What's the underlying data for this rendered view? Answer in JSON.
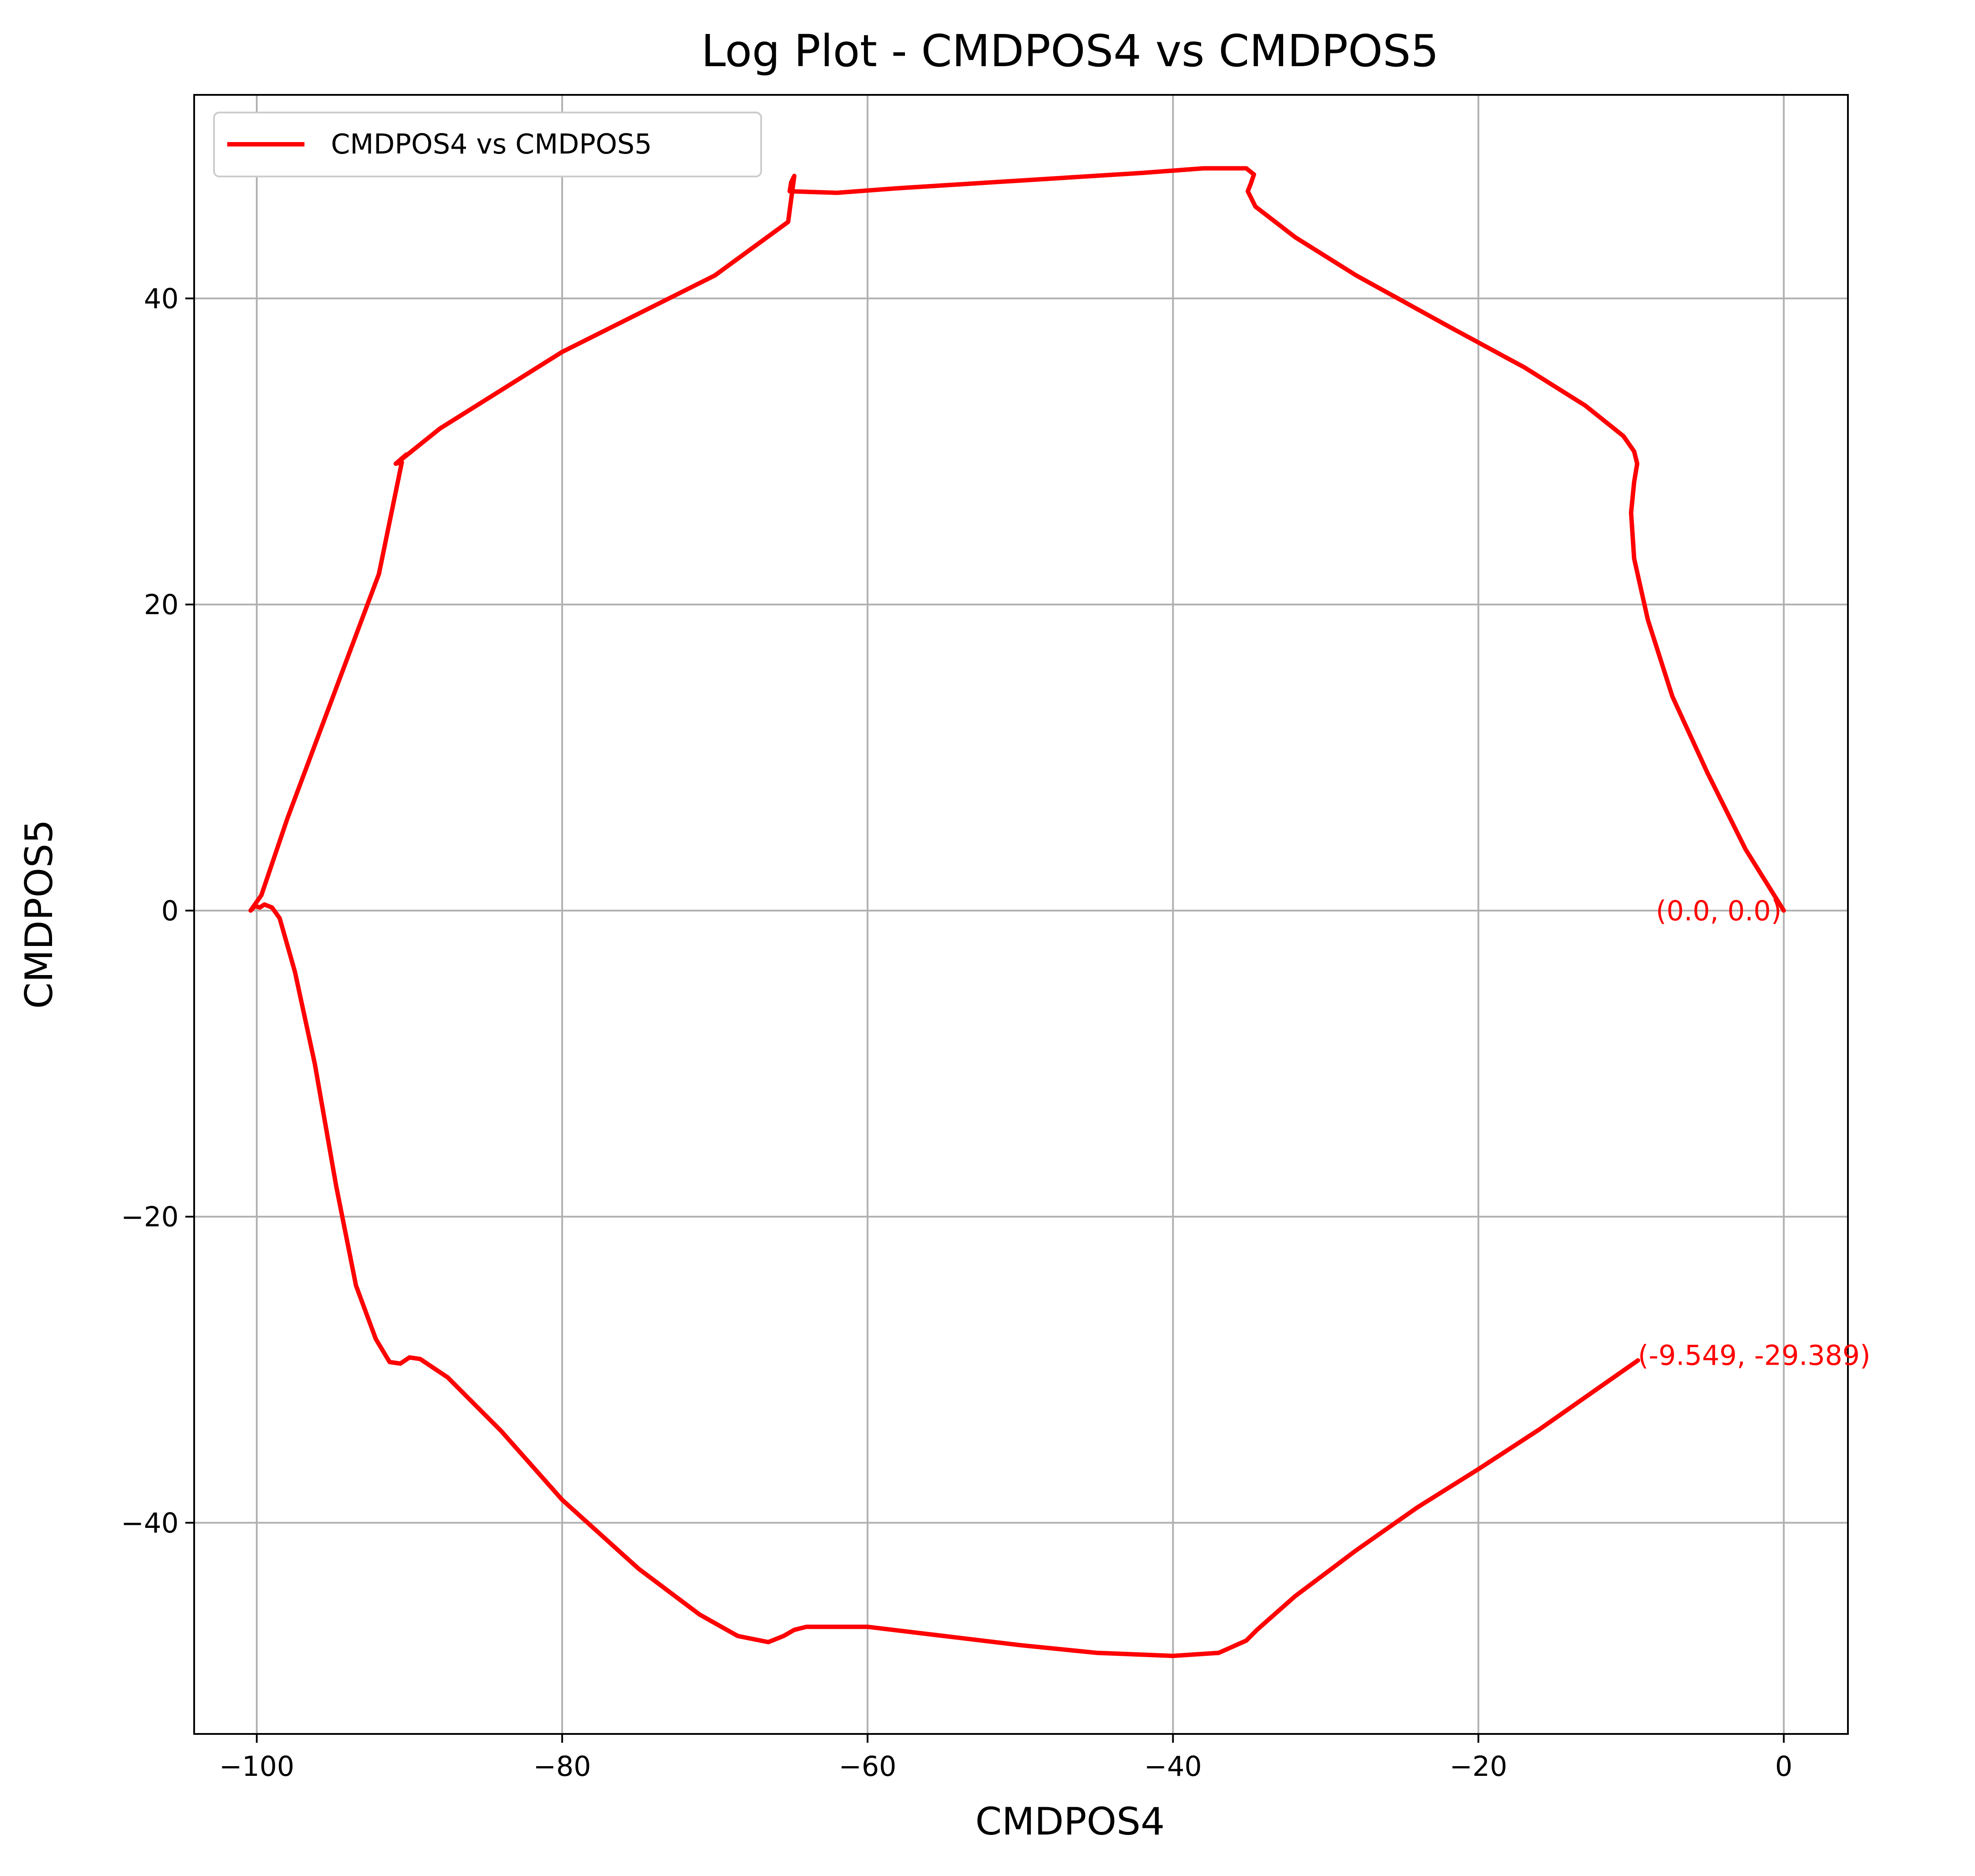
{
  "chart_data": {
    "type": "line",
    "title": "Log Plot - CMDPOS4 vs CMDPOS5",
    "xlabel": "CMDPOS4",
    "ylabel": "CMDPOS5",
    "xlim": [
      -104.1,
      4.2
    ],
    "ylim": [
      -53.8,
      53.3
    ],
    "xticks": [
      -100,
      -80,
      -60,
      -40,
      -20,
      0
    ],
    "yticks": [
      -40,
      -20,
      0,
      20,
      40
    ],
    "xtick_labels": [
      "−100",
      "−80",
      "−60",
      "−40",
      "−20",
      "0"
    ],
    "ytick_labels": [
      "−40",
      "−20",
      "0",
      "20",
      "40"
    ],
    "grid": true,
    "legend": {
      "position": "top-left",
      "entries": [
        "CMDPOS4 vs CMDPOS5"
      ]
    },
    "series": [
      {
        "name": "CMDPOS4 vs CMDPOS5",
        "color": "#ff0000",
        "x": [
          0,
          -2.5,
          -5,
          -7.3,
          -8.9,
          -9.8,
          -10.0,
          -9.8,
          -9.6,
          -9.8,
          -10.5,
          -13,
          -17,
          -22,
          -28,
          -32,
          -34.6,
          -35.1,
          -34.9,
          -34.7,
          -35.2,
          -38,
          -42,
          -50,
          -58,
          -62,
          -65.1,
          -65.0,
          -64.8,
          -65.2,
          -70,
          -80,
          -88,
          -90.5,
          -90.4,
          -90.2,
          -90.9,
          -90.5,
          -92,
          -95,
          -98,
          -99.7,
          -100.4,
          -100.1,
          -99.8,
          -99.5,
          -99,
          -98.5,
          -97.5,
          -96.2,
          -94.8,
          -93.5,
          -92.2,
          -91.3,
          -90.6,
          -90.0,
          -89.3,
          -87.5,
          -84,
          -80,
          -75,
          -71,
          -68.5,
          -66.5,
          -65.5,
          -64.8,
          -64,
          -60,
          -55,
          -50,
          -45,
          -40,
          -37,
          -35.2,
          -34.5,
          -32,
          -28,
          -24,
          -20,
          -16,
          -12,
          -9.549
        ],
        "y": [
          0,
          4,
          9,
          14,
          19,
          23,
          26,
          28,
          29.2,
          30,
          31,
          33,
          35.5,
          38.2,
          41.5,
          44,
          46,
          47,
          47.5,
          48.1,
          48.5,
          48.5,
          48.2,
          47.7,
          47.2,
          46.9,
          47.0,
          47.6,
          48.0,
          45,
          41.5,
          36.5,
          31.5,
          29.5,
          29.6,
          29.8,
          29.2,
          29.3,
          22,
          14,
          6,
          1,
          0,
          0.3,
          0.2,
          0.4,
          0.2,
          -0.5,
          -4,
          -10,
          -18,
          -24.5,
          -28,
          -29.5,
          -29.6,
          -29.2,
          -29.3,
          -30.5,
          -34,
          -38.5,
          -43,
          -46,
          -47.4,
          -47.8,
          -47.4,
          -47.0,
          -46.8,
          -46.8,
          -47.4,
          -48.0,
          -48.5,
          -48.7,
          -48.5,
          -47.7,
          -47,
          -44.8,
          -41.8,
          -39,
          -36.5,
          -33.9,
          -31.1,
          -29.389
        ]
      }
    ],
    "annotations": [
      {
        "text": "(0.0, 0.0)",
        "x": 0.0,
        "y": 0.0
      },
      {
        "text": "(-9.549, -29.389)",
        "x": -9.549,
        "y": -29.389
      }
    ]
  }
}
